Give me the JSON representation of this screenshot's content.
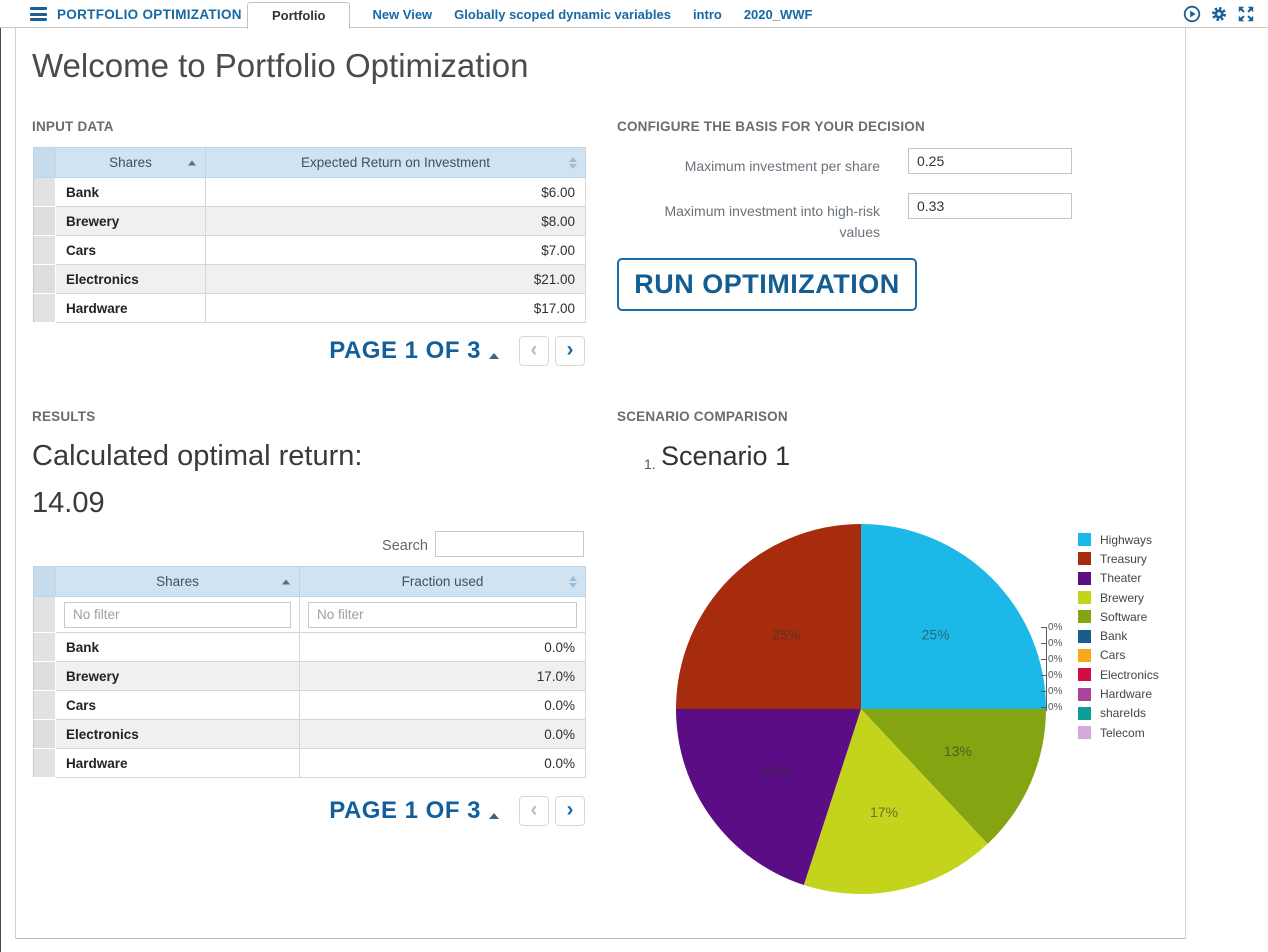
{
  "topbar": {
    "title": "PORTFOLIO OPTIMIZATION",
    "tabs": [
      {
        "label": "Portfolio",
        "active": true
      },
      {
        "label": "New View",
        "active": false
      },
      {
        "label": "Globally scoped dynamic variables",
        "active": false
      },
      {
        "label": "intro",
        "active": false
      },
      {
        "label": "2020_WWF",
        "active": false
      }
    ],
    "icons": [
      "run-model-icon",
      "settings-icon",
      "fullscreen-icon"
    ],
    "accent_color": "#1769a5"
  },
  "page": {
    "title": "Welcome to Portfolio Optimization"
  },
  "input_data": {
    "heading": "INPUT DATA",
    "table": {
      "columns": [
        "Shares",
        "Expected Return on Investment"
      ],
      "rows": [
        [
          "Bank",
          "$6.00"
        ],
        [
          "Brewery",
          "$8.00"
        ],
        [
          "Cars",
          "$7.00"
        ],
        [
          "Electronics",
          "$21.00"
        ],
        [
          "Hardware",
          "$17.00"
        ]
      ],
      "sort": "Shares ascending"
    },
    "pagination": {
      "page_label": "PAGE 1 OF 3"
    }
  },
  "configure": {
    "heading": "CONFIGURE THE BASIS FOR YOUR DECISION",
    "fields": [
      {
        "label": "Maximum investment per share",
        "value": "0.25"
      },
      {
        "label": "Maximum investment into high-risk values",
        "value": "0.33"
      }
    ],
    "run_button": "RUN OPTIMIZATION"
  },
  "results": {
    "heading": "RESULTS",
    "optimal_return_label": "Calculated optimal return:",
    "optimal_return_value": "14.09",
    "search_label": "Search",
    "table": {
      "columns": [
        "Shares",
        "Fraction used"
      ],
      "filter_placeholder": "No filter",
      "rows": [
        [
          "Bank",
          "0.0%"
        ],
        [
          "Brewery",
          "17.0%"
        ],
        [
          "Cars",
          "0.0%"
        ],
        [
          "Electronics",
          "0.0%"
        ],
        [
          "Hardware",
          "0.0%"
        ]
      ],
      "sort": "Shares ascending"
    },
    "pagination": {
      "page_label": "PAGE 1 OF 3"
    }
  },
  "scenario": {
    "heading": "SCENARIO COMPARISON",
    "index": "1.",
    "name": "Scenario 1",
    "zero_callouts": [
      "0%",
      "0%",
      "0%",
      "0%",
      "0%",
      "0%"
    ],
    "legend": [
      {
        "label": "Highways",
        "color": "#1cb8e8"
      },
      {
        "label": "Treasury",
        "color": "#a72c0d"
      },
      {
        "label": "Theater",
        "color": "#5a0d84"
      },
      {
        "label": "Brewery",
        "color": "#c4d41c"
      },
      {
        "label": "Software",
        "color": "#84a411"
      },
      {
        "label": "Bank",
        "color": "#175e8f"
      },
      {
        "label": "Cars",
        "color": "#f5a81c"
      },
      {
        "label": "Electronics",
        "color": "#d10d42"
      },
      {
        "label": "Hardware",
        "color": "#a8449b"
      },
      {
        "label": "shareIds",
        "color": "#0e9e99"
      },
      {
        "label": "Telecom",
        "color": "#d5a9e0"
      }
    ]
  },
  "chart_data": {
    "type": "pie",
    "title": "Scenario 1",
    "legend_position": "right",
    "slices": [
      {
        "label": "Highways",
        "value": 25,
        "display": "25%",
        "color": "#1cb8e8"
      },
      {
        "label": "Bank",
        "value": 0,
        "display": "0%",
        "color": "#175e8f"
      },
      {
        "label": "Cars",
        "value": 0,
        "display": "0%",
        "color": "#f5a81c"
      },
      {
        "label": "Electronics",
        "value": 0,
        "display": "0%",
        "color": "#d10d42"
      },
      {
        "label": "Hardware",
        "value": 0,
        "display": "0%",
        "color": "#a8449b"
      },
      {
        "label": "shareIds",
        "value": 0,
        "display": "0%",
        "color": "#0e9e99"
      },
      {
        "label": "Telecom",
        "value": 0,
        "display": "0%",
        "color": "#d5a9e0"
      },
      {
        "label": "Software",
        "value": 13,
        "display": "13%",
        "color": "#84a411"
      },
      {
        "label": "Brewery",
        "value": 17,
        "display": "17%",
        "color": "#c4d41c"
      },
      {
        "label": "Theater",
        "value": 20,
        "display": "20%",
        "color": "#5a0d84"
      },
      {
        "label": "Treasury",
        "value": 25,
        "display": "25%",
        "color": "#a72c0d"
      }
    ]
  }
}
